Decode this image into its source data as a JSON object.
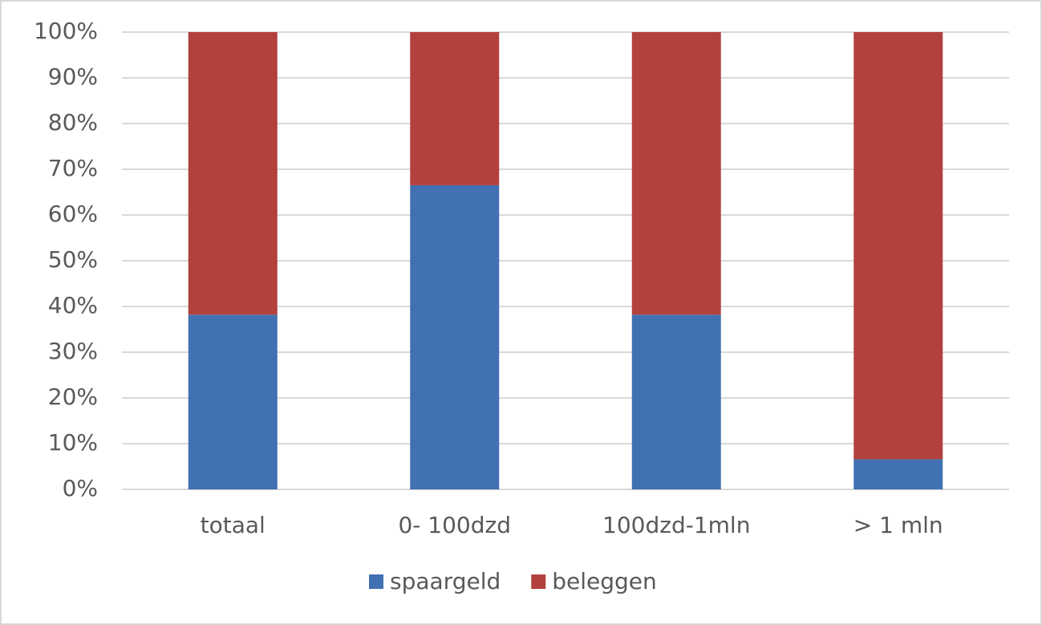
{
  "chart_data": {
    "type": "stacked-bar",
    "categories": [
      "totaal",
      "0- 100dzd",
      "100dzd-1mln",
      "> 1 mln"
    ],
    "series": [
      {
        "name": "spaargeld",
        "color": "#4170b3",
        "values": [
          38.2,
          66.5,
          38.2,
          6.6
        ]
      },
      {
        "name": "beleggen",
        "color": "#b2413e",
        "values": [
          61.8,
          33.5,
          61.8,
          93.4
        ]
      }
    ],
    "ylim": [
      0,
      100
    ],
    "yticks": [
      {
        "value": 0,
        "label": "0%"
      },
      {
        "value": 10,
        "label": "10%"
      },
      {
        "value": 20,
        "label": "20%"
      },
      {
        "value": 30,
        "label": "30%"
      },
      {
        "value": 40,
        "label": "40%"
      },
      {
        "value": 50,
        "label": "50%"
      },
      {
        "value": 60,
        "label": "60%"
      },
      {
        "value": 70,
        "label": "70%"
      },
      {
        "value": 80,
        "label": "80%"
      },
      {
        "value": 90,
        "label": "90%"
      },
      {
        "value": 100,
        "label": "100%"
      }
    ],
    "grid": true,
    "legend": "bottom"
  }
}
